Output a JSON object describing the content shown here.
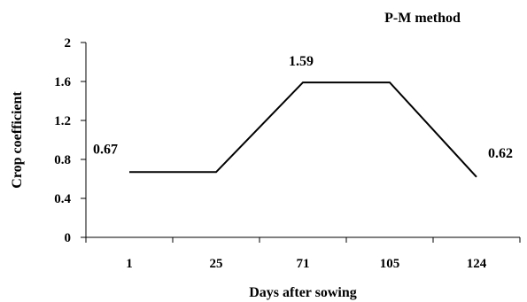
{
  "chart_data": {
    "type": "line",
    "title": "P-M method",
    "xlabel": "Days after sowing",
    "ylabel": "Crop coefficient",
    "categories": [
      "1",
      "25",
      "71",
      "105",
      "124"
    ],
    "series": [
      {
        "values": [
          0.67,
          0.67,
          1.59,
          1.59,
          0.62
        ]
      }
    ],
    "data_labels": [
      {
        "index": 0,
        "text": "0.67"
      },
      {
        "index": 2,
        "text": "1.59"
      },
      {
        "index": 4,
        "text": "0.62"
      }
    ],
    "yticks": [
      "0",
      "0.4",
      "0.8",
      "1.2",
      "1.6",
      "2"
    ],
    "ylim": [
      0,
      2
    ],
    "grid": false,
    "line_color": "#000000"
  }
}
